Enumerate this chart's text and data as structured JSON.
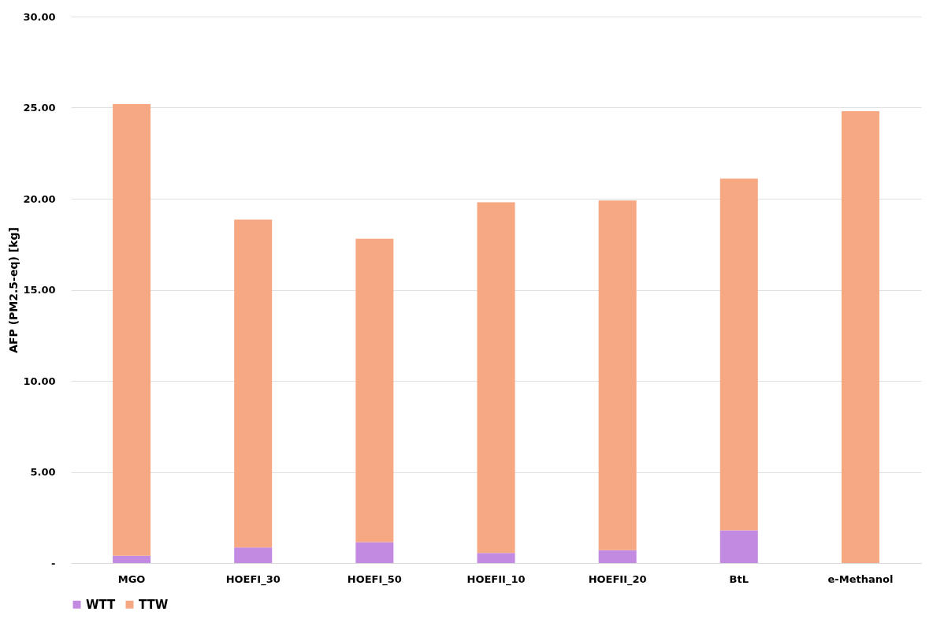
{
  "chart_data": {
    "type": "bar",
    "stacked": true,
    "ylabel": "AFP (PM2.5-eq) [kg]",
    "categories": [
      "MGO",
      "HOEFI_30",
      "HOEFI_50",
      "HOEFII_10",
      "HOEFII_20",
      "BtL",
      "e-Methanol"
    ],
    "series": [
      {
        "name": "WTT",
        "color": "#c28ae0",
        "values": [
          0.4,
          0.85,
          1.15,
          0.55,
          0.7,
          1.8,
          0.0
        ]
      },
      {
        "name": "TTW",
        "color": "#f5a882",
        "values": [
          24.8,
          18.0,
          16.65,
          19.25,
          19.2,
          19.3,
          24.8
        ]
      }
    ],
    "ylim": [
      0,
      30
    ],
    "yticks": [
      {
        "value": 0,
        "label": "-"
      },
      {
        "value": 5,
        "label": "5.00"
      },
      {
        "value": 10,
        "label": "10.00"
      },
      {
        "value": 15,
        "label": "15.00"
      },
      {
        "value": 20,
        "label": "20.00"
      },
      {
        "value": 25,
        "label": "25.00"
      },
      {
        "value": 30,
        "label": "30.00"
      }
    ],
    "grid": "y",
    "legend": "bottom"
  }
}
